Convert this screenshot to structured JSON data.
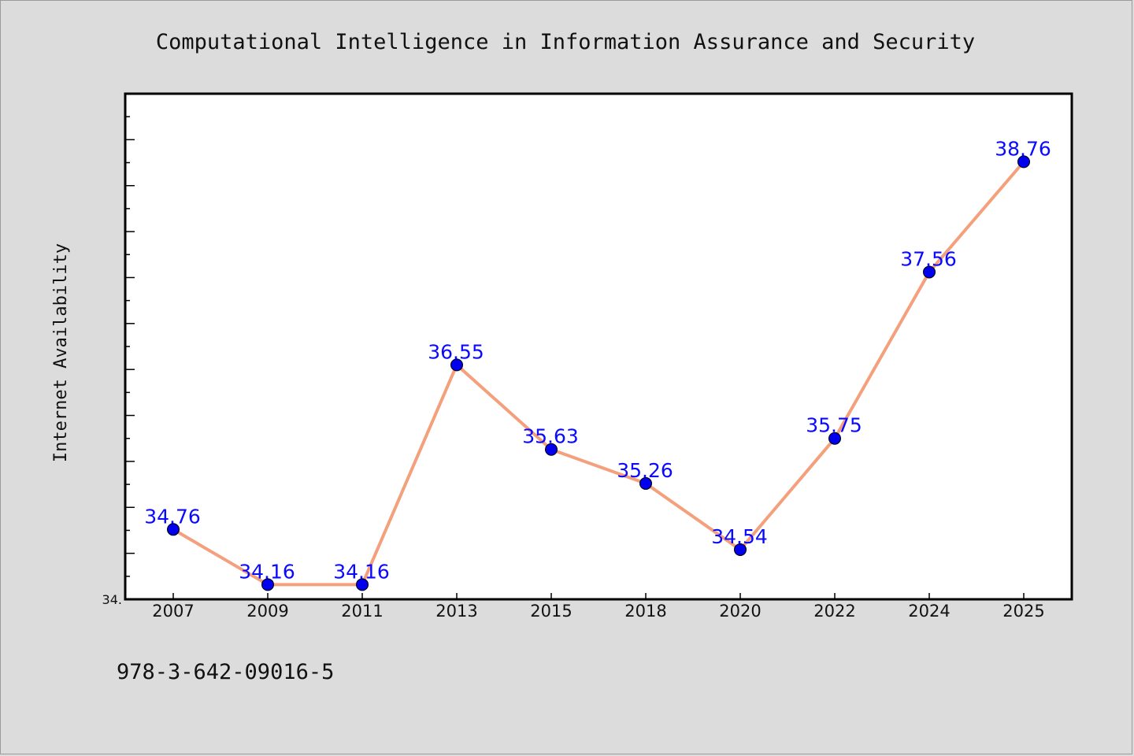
{
  "chart_data": {
    "type": "line",
    "title": "Computational Intelligence in Information Assurance and Security",
    "xlabel": "",
    "ylabel": "Internet Availability",
    "categories": [
      "2007",
      "2009",
      "2011",
      "2013",
      "2015",
      "2018",
      "2020",
      "2022",
      "2024",
      "2025"
    ],
    "series": [
      {
        "values": [
          34.76,
          34.16,
          34.16,
          36.55,
          35.63,
          35.26,
          34.54,
          35.75,
          37.56,
          38.76
        ],
        "data_labels": [
          "34.76",
          "34.16",
          "34.16",
          "36.55",
          "35.63",
          "35.26",
          "34.54",
          "35.75",
          "37.56",
          "38.76"
        ]
      }
    ],
    "ylim": [
      34.0,
      39.5
    ],
    "ytick_labels": [
      "34."
    ],
    "grid": false,
    "colors": {
      "line": "#f4a07c",
      "marker": "#0000ee",
      "label": "#0a0aff"
    }
  },
  "footer": {
    "text": "978-3-642-09016-5"
  }
}
